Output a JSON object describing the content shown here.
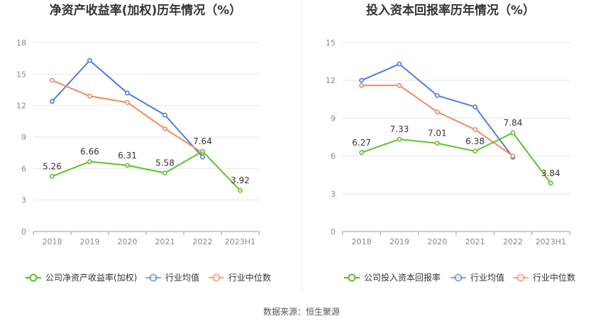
{
  "colors": {
    "company": "#5cc22f",
    "avg": "#4a7fd8",
    "median": "#f08a5d",
    "grid": "#e6e6e6",
    "axis": "#999999"
  },
  "source": "数据来源：恒生聚源",
  "chart_data": [
    {
      "type": "line",
      "title": "净资产收益率(加权)历年情况（%）",
      "categories": [
        "2018",
        "2019",
        "2020",
        "2021",
        "2022",
        "2023H1"
      ],
      "ylim": [
        0,
        18
      ],
      "yticks": [
        0,
        3,
        6,
        9,
        12,
        15,
        18
      ],
      "grid": true,
      "legend_position": "bottom",
      "series": [
        {
          "name": "公司净资产收益率(加权)",
          "color_key": "company",
          "labeled": true,
          "values": [
            5.26,
            6.66,
            6.31,
            5.58,
            7.64,
            3.92
          ]
        },
        {
          "name": "行业均值",
          "color_key": "avg",
          "labeled": false,
          "values": [
            12.4,
            16.3,
            13.2,
            11.1,
            7.1,
            null
          ]
        },
        {
          "name": "行业中位数",
          "color_key": "median",
          "labeled": false,
          "values": [
            14.4,
            12.9,
            12.3,
            9.8,
            7.5,
            null
          ]
        }
      ]
    },
    {
      "type": "line",
      "title": "投入资本回报率历年情况（%）",
      "categories": [
        "2018",
        "2019",
        "2020",
        "2021",
        "2022",
        "2023H1"
      ],
      "ylim": [
        0,
        15
      ],
      "yticks": [
        0,
        3,
        6,
        9,
        12,
        15
      ],
      "grid": true,
      "legend_position": "bottom",
      "series": [
        {
          "name": "公司投入资本回报率",
          "color_key": "company",
          "labeled": true,
          "values": [
            6.27,
            7.33,
            7.01,
            6.38,
            7.84,
            3.84
          ]
        },
        {
          "name": "行业均值",
          "color_key": "avg",
          "labeled": false,
          "values": [
            12.0,
            13.3,
            10.8,
            9.9,
            5.9,
            null
          ]
        },
        {
          "name": "行业中位数",
          "color_key": "median",
          "labeled": false,
          "values": [
            11.6,
            11.6,
            9.5,
            8.1,
            6.0,
            null
          ]
        }
      ]
    }
  ]
}
